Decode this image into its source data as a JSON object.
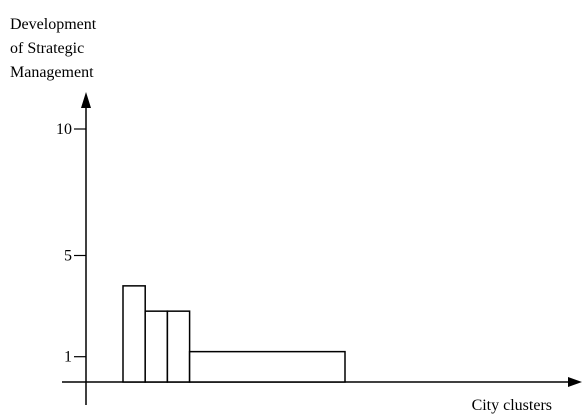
{
  "chart_data": {
    "type": "bar",
    "ylabel_lines": [
      "Development",
      "of Strategic",
      "Management"
    ],
    "xlabel": "City clusters",
    "y_ticks": [
      1,
      5,
      10
    ],
    "bars": [
      {
        "x_start": 0,
        "x_end": 1,
        "value": 3.8
      },
      {
        "x_start": 1,
        "x_end": 2,
        "value": 2.8
      },
      {
        "x_start": 2,
        "x_end": 3,
        "value": 2.8
      },
      {
        "x_start": 3,
        "x_end": 10,
        "value": 1.2
      }
    ],
    "grid": false,
    "legend": "none"
  }
}
